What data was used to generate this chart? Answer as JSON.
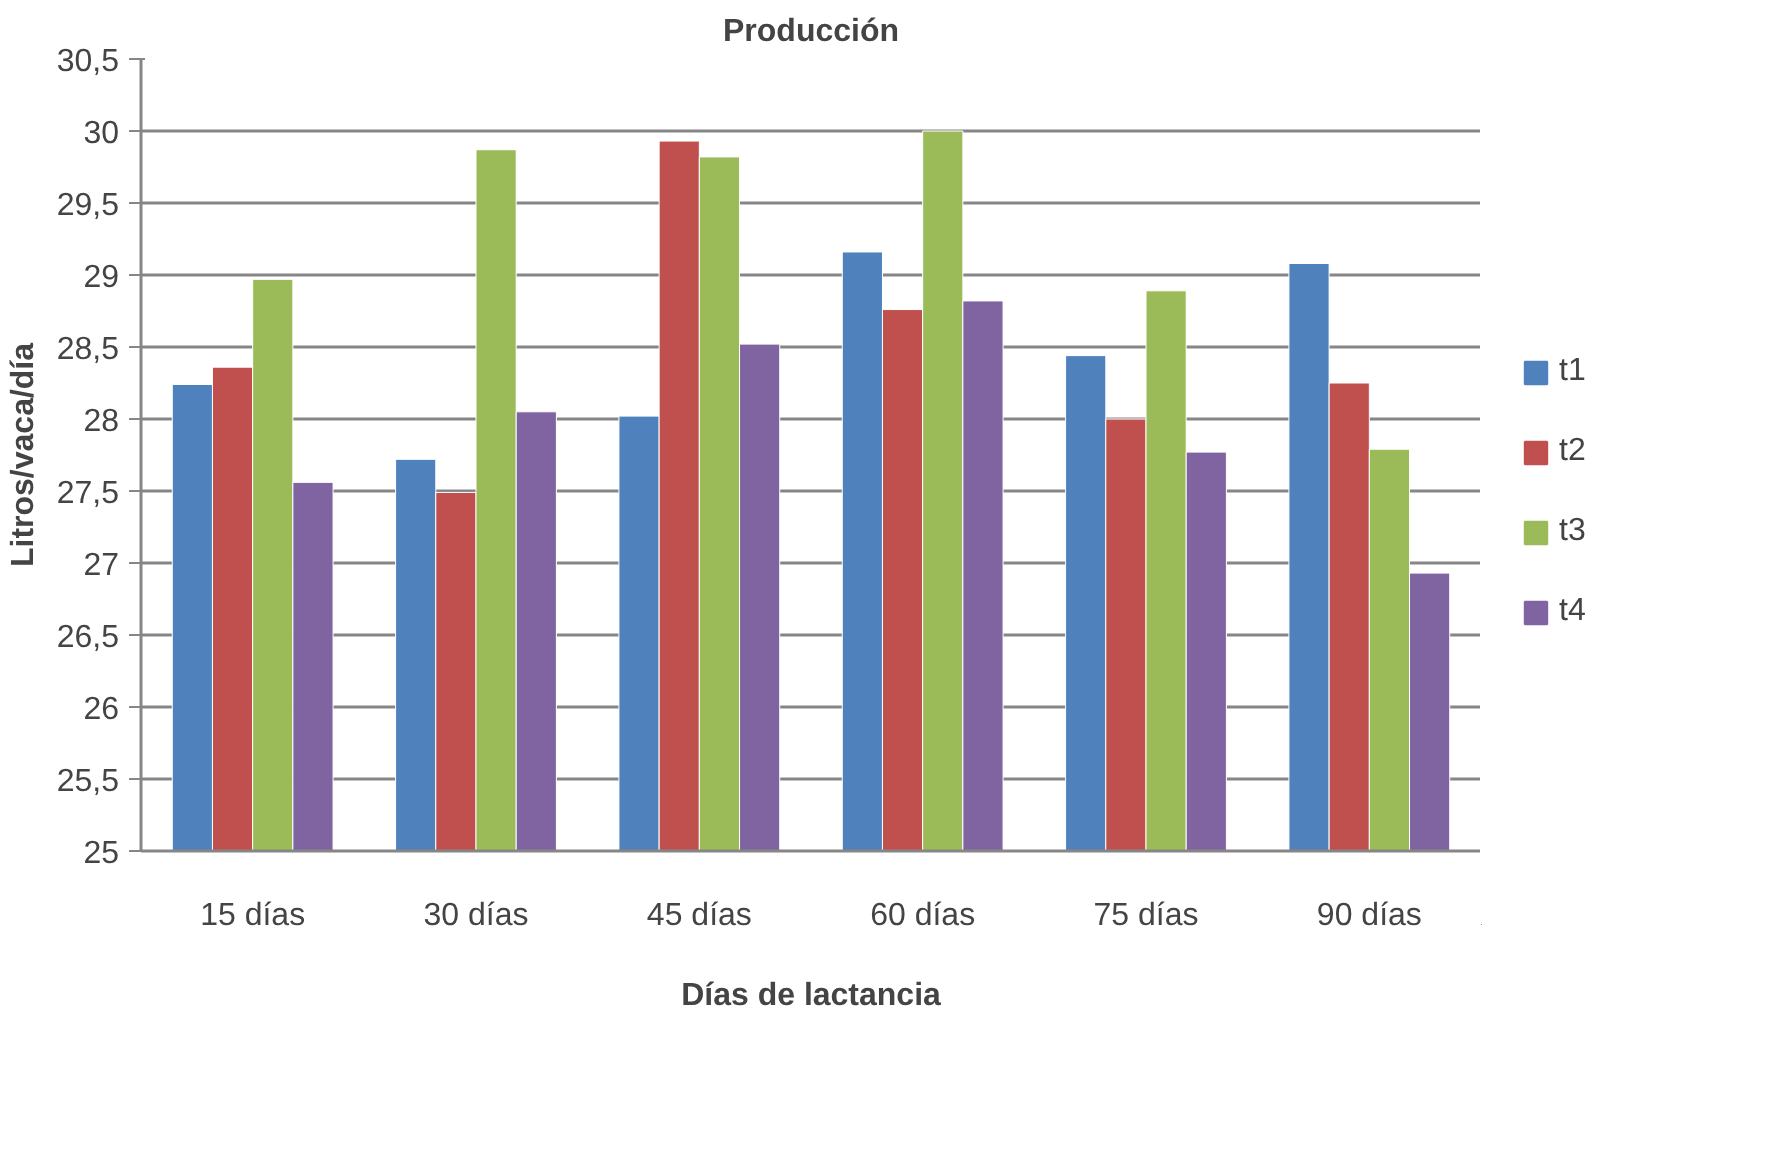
{
  "chart_data": {
    "type": "bar",
    "title": "Producción",
    "xlabel": "Días de lactancia",
    "ylabel": "Litros/vaca/día",
    "categories": [
      "15 días",
      "30 días",
      "45 días",
      "60 días",
      "75 días",
      "90 días"
    ],
    "series": [
      {
        "name": "t1",
        "color": "#4f81bd",
        "values": [
          28.24,
          27.72,
          28.02,
          29.16,
          28.44,
          29.08
        ]
      },
      {
        "name": "t2",
        "color": "#c0504d",
        "values": [
          28.36,
          27.49,
          29.93,
          28.76,
          28.0,
          28.25
        ]
      },
      {
        "name": "t3",
        "color": "#9bbb59",
        "values": [
          28.97,
          29.87,
          29.82,
          30.0,
          28.89,
          27.79
        ]
      },
      {
        "name": "t4",
        "color": "#8064a2",
        "values": [
          27.56,
          28.05,
          28.52,
          28.82,
          27.77,
          26.93
        ]
      }
    ],
    "ylim": [
      25,
      30.5
    ],
    "yticks": [
      25,
      {
        "value": 25.5,
        "label": "25,5"
      },
      26,
      {
        "value": 26.5,
        "label": "26,5"
      },
      27,
      {
        "value": 27.5,
        "label": "27,5"
      },
      28,
      {
        "value": 28.5,
        "label": "28,5"
      },
      29,
      {
        "value": 29.5,
        "label": "29,5"
      },
      30,
      {
        "value": 30.5,
        "label": "30,5"
      }
    ],
    "grid": "y",
    "legend": "right"
  }
}
